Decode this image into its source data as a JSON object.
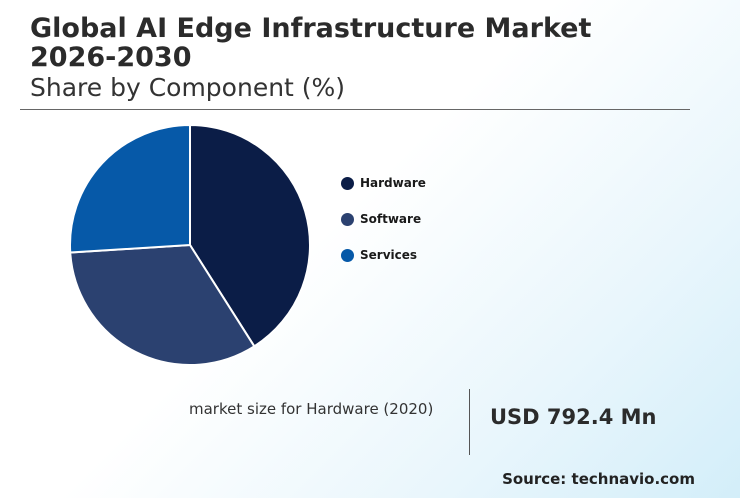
{
  "header": {
    "title": "Global AI Edge Infrastructure Market 2026-2030",
    "subtitle": "Share by Component (%)"
  },
  "chart_data": {
    "type": "pie",
    "categories": [
      "Hardware",
      "Software",
      "Services"
    ],
    "values": [
      41,
      33,
      26
    ],
    "colors": [
      "#0b1d47",
      "#2b4170",
      "#0659a8"
    ],
    "legend_position": "right"
  },
  "stat": {
    "label": "market size for Hardware (2020)",
    "value": "USD 792.4 Mn"
  },
  "footer": {
    "source": "Source: technavio.com"
  }
}
